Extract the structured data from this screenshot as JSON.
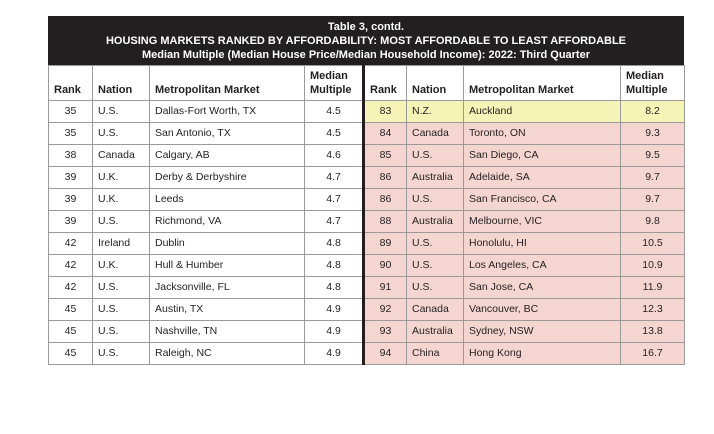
{
  "title": {
    "line1": "Table 3, contd.",
    "line2": "HOUSING MARKETS RANKED BY AFFORDABILITY: MOST AFFORDABLE TO LEAST AFFORDABLE",
    "line3": "Median Multiple (Median House Price/Median Household Income): 2022: Third Quarter"
  },
  "headers": {
    "rank": "Rank",
    "nation": "Nation",
    "market": "Metropolitan Market",
    "multiple_line1": "Median",
    "multiple_line2": "Multiple"
  },
  "colors": {
    "header_bg": "#231f20",
    "unaffordable_fill": "#f5d5d0",
    "highlight_fill": "#f6f3b6"
  },
  "rows": [
    {
      "left": {
        "rank": "35",
        "nation": "U.S.",
        "market": "Dallas-Fort Worth, TX",
        "multiple": "4.5"
      },
      "right": {
        "rank": "83",
        "nation": "N.Z.",
        "market": "Auckland",
        "multiple": "8.2"
      }
    },
    {
      "left": {
        "rank": "35",
        "nation": "U.S.",
        "market": "San Antonio, TX",
        "multiple": "4.5"
      },
      "right": {
        "rank": "84",
        "nation": "Canada",
        "market": "Toronto, ON",
        "multiple": "9.3"
      }
    },
    {
      "left": {
        "rank": "38",
        "nation": "Canada",
        "market": "Calgary, AB",
        "multiple": "4.6"
      },
      "right": {
        "rank": "85",
        "nation": "U.S.",
        "market": "San Diego, CA",
        "multiple": "9.5"
      }
    },
    {
      "left": {
        "rank": "39",
        "nation": "U.K.",
        "market": "Derby & Derbyshire",
        "multiple": "4.7"
      },
      "right": {
        "rank": "86",
        "nation": "Australia",
        "market": "Adelaide, SA",
        "multiple": "9.7"
      }
    },
    {
      "left": {
        "rank": "39",
        "nation": "U.K.",
        "market": "Leeds",
        "multiple": "4.7"
      },
      "right": {
        "rank": "86",
        "nation": "U.S.",
        "market": "San Francisco, CA",
        "multiple": "9.7"
      }
    },
    {
      "left": {
        "rank": "39",
        "nation": "U.S.",
        "market": "Richmond, VA",
        "multiple": "4.7"
      },
      "right": {
        "rank": "88",
        "nation": "Australia",
        "market": "Melbourne, VIC",
        "multiple": "9.8"
      }
    },
    {
      "left": {
        "rank": "42",
        "nation": "Ireland",
        "market": "Dublin",
        "multiple": "4.8"
      },
      "right": {
        "rank": "89",
        "nation": "U.S.",
        "market": "Honolulu, HI",
        "multiple": "10.5"
      }
    },
    {
      "left": {
        "rank": "42",
        "nation": "U.K.",
        "market": "Hull & Humber",
        "multiple": "4.8"
      },
      "right": {
        "rank": "90",
        "nation": "U.S.",
        "market": "Los Angeles, CA",
        "multiple": "10.9"
      }
    },
    {
      "left": {
        "rank": "42",
        "nation": "U.S.",
        "market": "Jacksonville, FL",
        "multiple": "4.8"
      },
      "right": {
        "rank": "91",
        "nation": "U.S.",
        "market": "San Jose, CA",
        "multiple": "11.9"
      }
    },
    {
      "left": {
        "rank": "45",
        "nation": "U.S.",
        "market": "Austin, TX",
        "multiple": "4.9"
      },
      "right": {
        "rank": "92",
        "nation": "Canada",
        "market": "Vancouver, BC",
        "multiple": "12.3"
      }
    },
    {
      "left": {
        "rank": "45",
        "nation": "U.S.",
        "market": "Nashville, TN",
        "multiple": "4.9"
      },
      "right": {
        "rank": "93",
        "nation": "Australia",
        "market": "Sydney, NSW",
        "multiple": "13.8"
      }
    },
    {
      "left": {
        "rank": "45",
        "nation": "U.S.",
        "market": "Raleigh, NC",
        "multiple": "4.9"
      },
      "right": {
        "rank": "94",
        "nation": "China",
        "market": "Hong Kong",
        "multiple": "16.7"
      }
    }
  ]
}
